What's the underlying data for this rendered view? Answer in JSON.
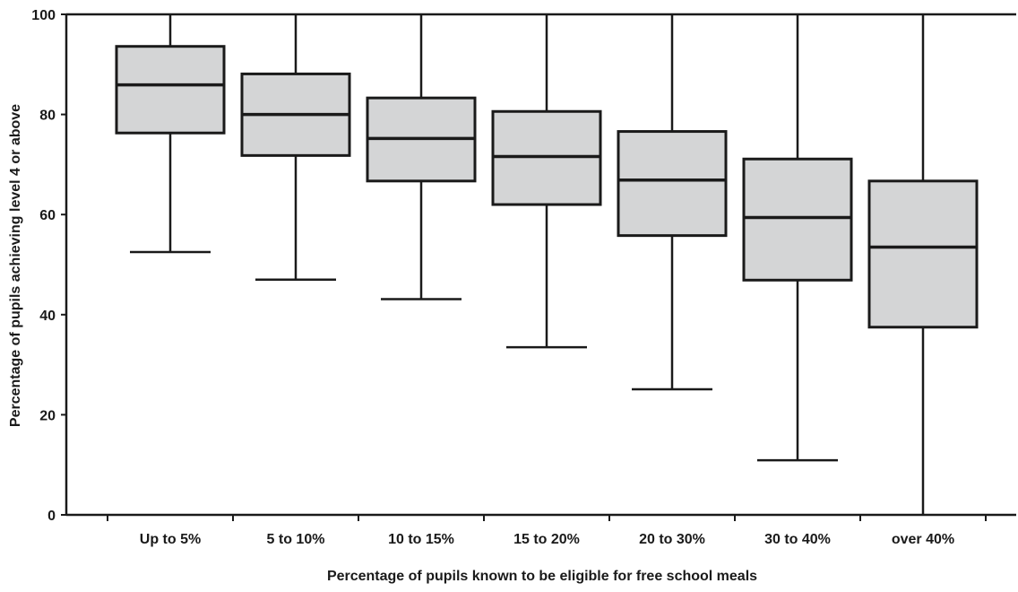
{
  "chart_data": {
    "type": "boxplot",
    "title": "",
    "xlabel": "Percentage of pupils known to be eligible for free school meals",
    "ylabel": "Percentage of pupils achieving level 4 or above",
    "ylim": [
      0,
      100
    ],
    "yticks": [
      "0",
      "20",
      "40",
      "60",
      "80",
      "100"
    ],
    "grid": false,
    "legend": "none",
    "categories": [
      "Up to 5%",
      "5 to 10%",
      "10 to 15%",
      "15 to 20%",
      "20 to 30%",
      "30 to 40%",
      "over 40%"
    ],
    "boxes": [
      {
        "min": 52.5,
        "q1": 76.3,
        "median": 85.9,
        "q3": 93.6,
        "max": 100
      },
      {
        "min": 47.0,
        "q1": 71.8,
        "median": 80.0,
        "q3": 88.1,
        "max": 100
      },
      {
        "min": 43.1,
        "q1": 66.7,
        "median": 75.2,
        "q3": 83.3,
        "max": 100
      },
      {
        "min": 33.5,
        "q1": 62.0,
        "median": 71.6,
        "q3": 80.6,
        "max": 100
      },
      {
        "min": 25.1,
        "q1": 55.8,
        "median": 66.9,
        "q3": 76.6,
        "max": 100
      },
      {
        "min": 10.9,
        "q1": 46.9,
        "median": 59.4,
        "q3": 71.1,
        "max": 100
      },
      {
        "min": 0,
        "q1": 37.5,
        "median": 53.5,
        "q3": 66.7,
        "max": 100
      }
    ],
    "colors": {
      "box_fill": "#d4d5d6",
      "stroke": "#1a1a1a"
    }
  }
}
